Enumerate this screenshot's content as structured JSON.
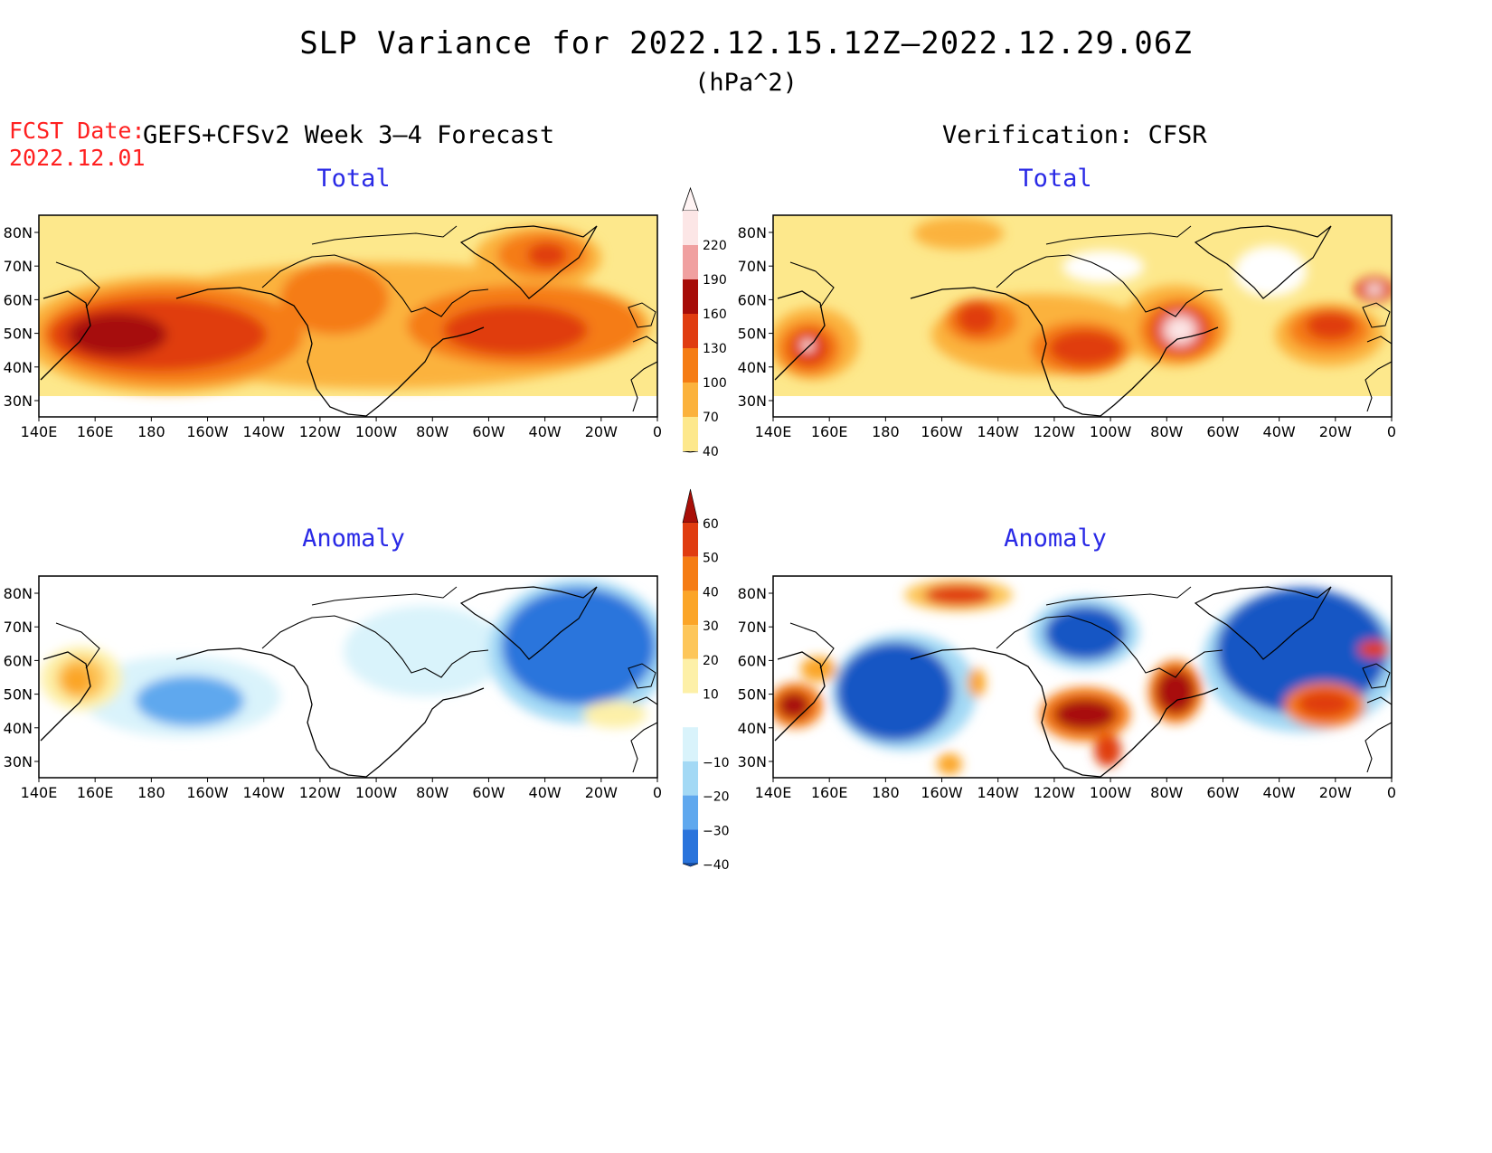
{
  "header": {
    "title": "SLP Variance for 2022.12.15.12Z–2022.12.29.06Z",
    "units": "(hPa^2)",
    "fcst_label": "FCST Date:",
    "fcst_date": "2022.12.01",
    "forecast_label": "GEFS+CFSv2 Week 3–4 Forecast",
    "verification_label": "Verification: CFSR"
  },
  "panels": {
    "fcst_total_title": "Total",
    "ver_total_title": "Total",
    "fcst_anom_title": "Anomaly",
    "ver_anom_title": "Anomaly"
  },
  "axes": {
    "lat_labels": [
      "80N",
      "70N",
      "60N",
      "50N",
      "40N",
      "30N"
    ],
    "lon_labels": [
      "140E",
      "160E",
      "180",
      "160W",
      "140W",
      "120W",
      "100W",
      "80W",
      "60W",
      "40W",
      "20W",
      "0"
    ]
  },
  "colorbar_total": {
    "levels": [
      "40",
      "70",
      "100",
      "130",
      "160",
      "190",
      "220"
    ],
    "colors": [
      "#fde88c",
      "#fbb23c",
      "#f57c14",
      "#e03c10",
      "#a60c08",
      "#f0a0a0",
      "#fce6e6"
    ]
  },
  "colorbar_anomaly": {
    "levels": [
      "60",
      "50",
      "40",
      "30",
      "20",
      "10",
      "−10",
      "−20",
      "−30",
      "−40"
    ],
    "colors_top_to_bottom": [
      "#a80f08",
      "#e03c10",
      "#f57c14",
      "#fba528",
      "#fdc65a",
      "#fdf0a8",
      "#ffffff",
      "#d9f3fb",
      "#a3d9f5",
      "#5fa8ee",
      "#2a74dc",
      "#1456c4"
    ]
  }
}
